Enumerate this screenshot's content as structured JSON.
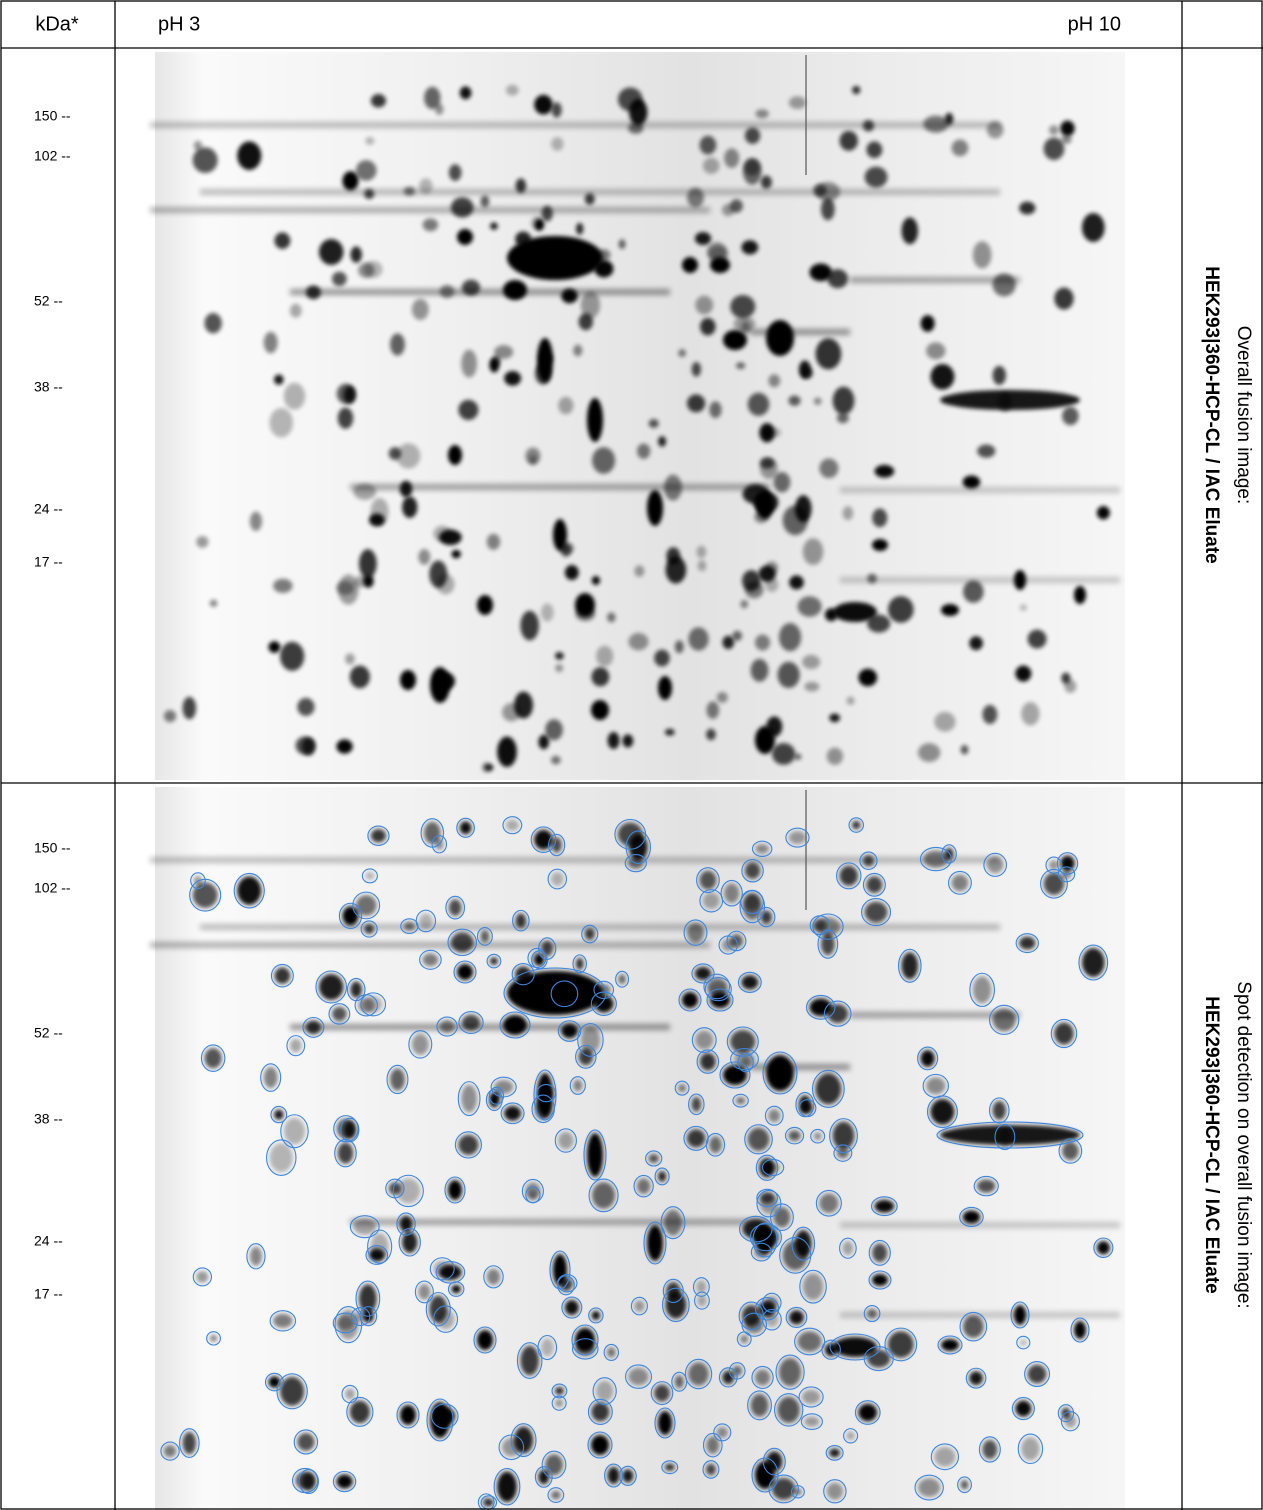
{
  "header": {
    "kda": "kDa*",
    "ph_low": "pH 3",
    "ph_high": "pH 10"
  },
  "rows": [
    {
      "markers": [
        "150 --",
        "102 --",
        "52 --",
        "38 --",
        "24 --",
        "17 --"
      ],
      "label": [
        "Overall fusion image:",
        "HEK293|360-HCP-CL / IAC Eluate"
      ]
    },
    {
      "markers": [
        "150 --",
        "102 --",
        "52 --",
        "38 --",
        "24 --",
        "17 --"
      ],
      "label": [
        "Spot detection on overall fusion image:",
        "HEK293|360-HCP-CL / IAC Eluate"
      ]
    }
  ]
}
